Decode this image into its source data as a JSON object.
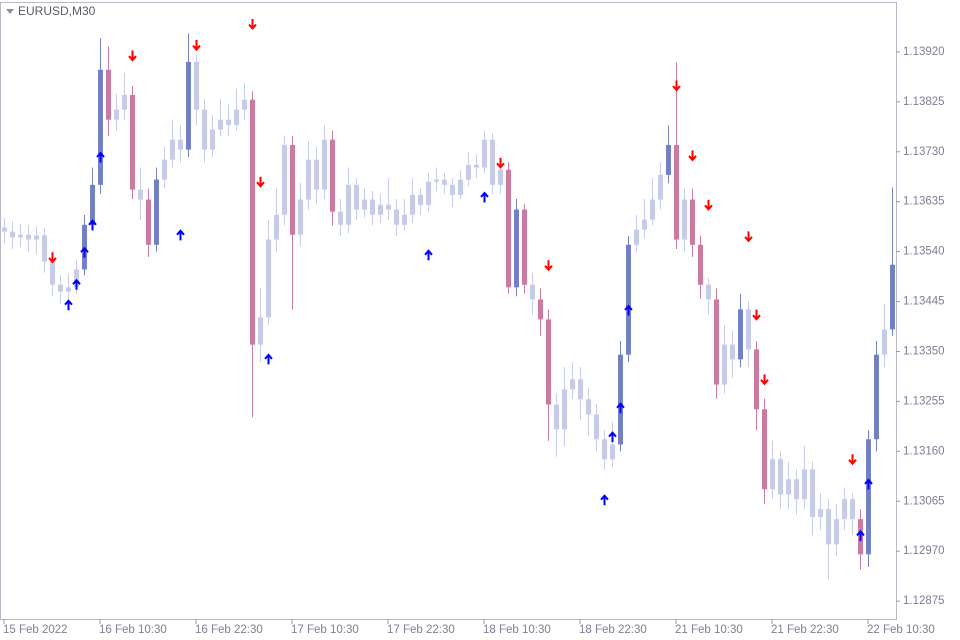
{
  "chart_data": {
    "type": "candlestick",
    "title": "EURUSD,M30",
    "categories": [
      "15 Feb 2022",
      null,
      null,
      null,
      null,
      null,
      null,
      null,
      null,
      null,
      null,
      null,
      "16 Feb 10:30",
      null,
      null,
      null,
      null,
      null,
      null,
      null,
      null,
      null,
      null,
      null,
      "16 Feb 22:30",
      null,
      null,
      null,
      null,
      null,
      null,
      null,
      null,
      null,
      null,
      null,
      "17 Feb 10:30",
      null,
      null,
      null,
      null,
      null,
      null,
      null,
      null,
      null,
      null,
      null,
      "17 Feb 22:30",
      null,
      null,
      null,
      null,
      null,
      null,
      null,
      null,
      null,
      null,
      null,
      "18 Feb 10:30",
      null,
      null,
      null,
      null,
      null,
      null,
      null,
      null,
      null,
      null,
      null,
      "18 Feb 22:30",
      null,
      null,
      null,
      null,
      null,
      null,
      null,
      null,
      null,
      null,
      null,
      "21 Feb 10:30",
      null,
      null,
      null,
      null,
      null,
      null,
      null,
      null,
      null,
      null,
      null,
      "21 Feb 22:30",
      null,
      null,
      null,
      null,
      null,
      null,
      null,
      null,
      null,
      null,
      null,
      "22 Feb 10:30",
      null,
      null,
      null
    ],
    "open": [
      1.13586,
      1.13578,
      1.13567,
      1.13572,
      1.13563,
      1.13571,
      1.13521,
      1.13477,
      1.13464,
      1.13472,
      1.13506,
      1.13591,
      1.13667,
      1.13886,
      1.13791,
      1.1381,
      1.13838,
      1.13658,
      1.13639,
      1.13553,
      1.13677,
      1.13715,
      1.13753,
      1.13734,
      1.13901,
      1.1381,
      1.13734,
      1.13772,
      1.13791,
      1.13781,
      1.1381,
      1.13829,
      1.13363,
      1.13415,
      1.13563,
      1.1361,
      1.13743,
      1.13572,
      1.13639,
      1.13715,
      1.13658,
      1.13753,
      1.13616,
      1.13591,
      1.13667,
      1.1362,
      1.13639,
      1.1361,
      1.13629,
      1.1362,
      1.13591,
      1.1361,
      1.13648,
      1.13629,
      1.13673,
      1.13677,
      1.13667,
      1.13648,
      1.13677,
      1.13705,
      1.137,
      1.13753,
      1.13667,
      1.13696,
      1.13472,
      1.1362,
      1.13477,
      1.13449,
      1.13411,
      1.13249,
      1.13202,
      1.13278,
      1.13297,
      1.13259,
      1.1323,
      1.13183,
      1.13145,
      1.13173,
      1.13344,
      1.13553,
      1.13582,
      1.13601,
      1.13639,
      1.13686,
      1.13743,
      1.13563,
      1.13639,
      1.13553,
      1.13477,
      1.13449,
      1.13287,
      1.13363,
      1.13335,
      1.1343,
      1.13354,
      1.1324,
      1.13088,
      1.13145,
      1.13078,
      1.13107,
      1.13069,
      1.13126,
      1.13035,
      1.1305,
      1.12983,
      1.13031,
      1.13069,
      1.13031,
      1.12964,
      1.13183,
      1.13344,
      1.13392
    ],
    "close": [
      1.13578,
      1.13567,
      1.13572,
      1.13563,
      1.13571,
      1.13521,
      1.13477,
      1.13464,
      1.13472,
      1.13506,
      1.13591,
      1.13667,
      1.13886,
      1.13791,
      1.1381,
      1.13838,
      1.13658,
      1.13639,
      1.13553,
      1.13677,
      1.13715,
      1.13753,
      1.13734,
      1.13901,
      1.1381,
      1.13734,
      1.13772,
      1.13791,
      1.13781,
      1.1381,
      1.13829,
      1.13363,
      1.13415,
      1.13563,
      1.1361,
      1.13743,
      1.13572,
      1.13639,
      1.13715,
      1.13658,
      1.13753,
      1.13616,
      1.13591,
      1.13667,
      1.1362,
      1.13639,
      1.1361,
      1.13629,
      1.1362,
      1.13591,
      1.1361,
      1.13648,
      1.13629,
      1.13673,
      1.13677,
      1.13667,
      1.13648,
      1.13677,
      1.13705,
      1.137,
      1.13753,
      1.13667,
      1.13696,
      1.13472,
      1.1362,
      1.13477,
      1.13449,
      1.13411,
      1.13249,
      1.13202,
      1.13278,
      1.13297,
      1.13259,
      1.1323,
      1.13183,
      1.13145,
      1.13173,
      1.13344,
      1.13553,
      1.13582,
      1.13601,
      1.13639,
      1.13686,
      1.13743,
      1.13563,
      1.13639,
      1.13553,
      1.13477,
      1.13449,
      1.13287,
      1.13363,
      1.13335,
      1.1343,
      1.13354,
      1.1324,
      1.13088,
      1.13145,
      1.13078,
      1.13107,
      1.13069,
      1.13126,
      1.13035,
      1.1305,
      1.12983,
      1.13031,
      1.13069,
      1.13031,
      1.12964,
      1.13183,
      1.13344,
      1.13392,
      1.13515
    ],
    "high": [
      1.13604,
      1.13597,
      1.13592,
      1.1359,
      1.13588,
      1.13585,
      1.1354,
      1.13495,
      1.13498,
      1.13525,
      1.1361,
      1.137,
      1.13946,
      1.1393,
      1.1384,
      1.1388,
      1.13855,
      1.137,
      1.1366,
      1.137,
      1.1374,
      1.1379,
      1.1378,
      1.13955,
      1.13915,
      1.1383,
      1.138,
      1.1383,
      1.1382,
      1.1385,
      1.1386,
      1.13845,
      1.1347,
      1.136,
      1.1366,
      1.1376,
      1.1376,
      1.1367,
      1.1375,
      1.1374,
      1.1378,
      1.1377,
      1.1364,
      1.137,
      1.1368,
      1.1366,
      1.13655,
      1.1365,
      1.1368,
      1.1364,
      1.1364,
      1.1368,
      1.1366,
      1.1369,
      1.137,
      1.1369,
      1.1368,
      1.13695,
      1.1373,
      1.13725,
      1.1377,
      1.13765,
      1.1371,
      1.1371,
      1.1364,
      1.1363,
      1.135,
      1.1347,
      1.1343,
      1.1327,
      1.1332,
      1.1333,
      1.1332,
      1.1328,
      1.1325,
      1.132,
      1.13215,
      1.1337,
      1.1357,
      1.1361,
      1.1364,
      1.1368,
      1.1371,
      1.1378,
      1.139,
      1.1366,
      1.1366,
      1.1357,
      1.1349,
      1.1347,
      1.134,
      1.1339,
      1.1346,
      1.13445,
      1.1337,
      1.1326,
      1.1318,
      1.1316,
      1.1314,
      1.13125,
      1.1317,
      1.1314,
      1.1308,
      1.1307,
      1.1306,
      1.1309,
      1.1308,
      1.1305,
      1.132,
      1.1337,
      1.1344,
      1.13662
    ],
    "low": [
      1.13555,
      1.13545,
      1.13548,
      1.1354,
      1.13535,
      1.135,
      1.13455,
      1.1344,
      1.1345,
      1.1346,
      1.13495,
      1.1358,
      1.1365,
      1.1376,
      1.1377,
      1.1379,
      1.1364,
      1.136,
      1.1353,
      1.1354,
      1.1366,
      1.137,
      1.1371,
      1.1372,
      1.1378,
      1.1371,
      1.1372,
      1.1376,
      1.1376,
      1.1377,
      1.1379,
      1.13225,
      1.1333,
      1.134,
      1.1354,
      1.1359,
      1.1343,
      1.1355,
      1.1362,
      1.1363,
      1.1364,
      1.1359,
      1.1357,
      1.13575,
      1.136,
      1.13605,
      1.1359,
      1.13595,
      1.136,
      1.1357,
      1.1358,
      1.13595,
      1.1361,
      1.13615,
      1.13655,
      1.1365,
      1.13625,
      1.1364,
      1.13665,
      1.1368,
      1.1369,
      1.1365,
      1.1365,
      1.1346,
      1.13455,
      1.1346,
      1.1342,
      1.1338,
      1.1318,
      1.1315,
      1.1317,
      1.1326,
      1.1322,
      1.1319,
      1.1316,
      1.13125,
      1.1313,
      1.1316,
      1.1333,
      1.1354,
      1.13565,
      1.1359,
      1.1362,
      1.1367,
      1.13545,
      1.1354,
      1.1353,
      1.1345,
      1.1342,
      1.1326,
      1.1327,
      1.133,
      1.1332,
      1.1332,
      1.132,
      1.1306,
      1.1307,
      1.1305,
      1.1305,
      1.1304,
      1.1305,
      1.13,
      1.1301,
      1.12917,
      1.1296,
      1.1301,
      1.13,
      1.12935,
      1.1294,
      1.1316,
      1.1332,
      1.1338
    ],
    "colors": [
      "#c5cbe8",
      "#c5cbe8",
      "#c5cbe8",
      "#c5cbe8",
      "#c5cbe8",
      "#c5cbe8",
      "#c5cbe8",
      "#c5cbe8",
      "#c5cbe8",
      "#c5cbe8",
      "#7480c4",
      "#7480c4",
      "#7480c4",
      "#cc7aa0",
      "#c5cbe8",
      "#c5cbe8",
      "#cc7aa0",
      "#c5cbe8",
      "#cc7aa0",
      "#7480c4",
      "#c5cbe8",
      "#c5cbe8",
      "#c5cbe8",
      "#7480c4",
      "#c5cbe8",
      "#c5cbe8",
      "#c5cbe8",
      "#c5cbe8",
      "#c5cbe8",
      "#c5cbe8",
      "#c5cbe8",
      "#cc7aa0",
      "#c5cbe8",
      "#c5cbe8",
      "#c5cbe8",
      "#c5cbe8",
      "#cc7aa0",
      "#c5cbe8",
      "#c5cbe8",
      "#c5cbe8",
      "#c5cbe8",
      "#cc7aa0",
      "#c5cbe8",
      "#c5cbe8",
      "#c5cbe8",
      "#c5cbe8",
      "#c5cbe8",
      "#c5cbe8",
      "#c5cbe8",
      "#c5cbe8",
      "#c5cbe8",
      "#c5cbe8",
      "#c5cbe8",
      "#c5cbe8",
      "#c5cbe8",
      "#c5cbe8",
      "#c5cbe8",
      "#c5cbe8",
      "#c5cbe8",
      "#c5cbe8",
      "#c5cbe8",
      "#c5cbe8",
      "#c5cbe8",
      "#cc7aa0",
      "#7480c4",
      "#cc7aa0",
      "#c5cbe8",
      "#cc7aa0",
      "#cc7aa0",
      "#c5cbe8",
      "#c5cbe8",
      "#c5cbe8",
      "#c5cbe8",
      "#c5cbe8",
      "#c5cbe8",
      "#c5cbe8",
      "#c5cbe8",
      "#7480c4",
      "#7480c4",
      "#c5cbe8",
      "#c5cbe8",
      "#c5cbe8",
      "#c5cbe8",
      "#7480c4",
      "#cc7aa0",
      "#c5cbe8",
      "#cc7aa0",
      "#cc7aa0",
      "#c5cbe8",
      "#cc7aa0",
      "#c5cbe8",
      "#c5cbe8",
      "#7480c4",
      "#c5cbe8",
      "#cc7aa0",
      "#cc7aa0",
      "#c5cbe8",
      "#c5cbe8",
      "#c5cbe8",
      "#c5cbe8",
      "#c5cbe8",
      "#c5cbe8",
      "#c5cbe8",
      "#c5cbe8",
      "#c5cbe8",
      "#c5cbe8",
      "#c5cbe8",
      "#cc7aa0",
      "#7480c4",
      "#7480c4",
      "#c5cbe8",
      "#7480c4"
    ],
    "buy_arrows": {
      "color": "#0000ff",
      "values": [
        null,
        null,
        null,
        null,
        null,
        null,
        null,
        null,
        1.13438,
        1.13477,
        1.13538,
        1.1359,
        1.13719,
        null,
        null,
        null,
        null,
        null,
        null,
        null,
        null,
        null,
        1.13571,
        null,
        null,
        null,
        null,
        null,
        null,
        null,
        null,
        null,
        null,
        1.13335,
        null,
        null,
        null,
        null,
        null,
        null,
        null,
        null,
        null,
        null,
        null,
        null,
        null,
        null,
        null,
        null,
        null,
        null,
        null,
        1.13533,
        null,
        null,
        null,
        null,
        null,
        null,
        1.13643,
        null,
        null,
        null,
        null,
        null,
        null,
        null,
        null,
        null,
        null,
        null,
        null,
        null,
        null,
        1.13067,
        1.13187,
        1.13242,
        1.13428,
        null,
        null,
        null,
        null,
        null,
        null,
        null,
        null,
        null,
        null,
        null,
        null,
        null,
        null,
        null,
        null,
        null,
        null,
        null,
        null,
        null,
        null,
        null,
        null,
        null,
        null,
        null,
        null,
        1.12999,
        1.13097,
        null,
        null,
        null
      ]
    },
    "sell_arrows": {
      "color": "#ff0000",
      "values": [
        null,
        null,
        null,
        null,
        null,
        null,
        1.13529,
        null,
        null,
        null,
        null,
        null,
        null,
        null,
        null,
        null,
        1.13913,
        null,
        null,
        null,
        null,
        null,
        null,
        null,
        1.13933,
        null,
        null,
        null,
        null,
        null,
        null,
        1.13973,
        1.13673,
        null,
        null,
        null,
        null,
        null,
        null,
        null,
        null,
        null,
        null,
        null,
        null,
        null,
        null,
        null,
        null,
        null,
        null,
        null,
        null,
        null,
        null,
        null,
        null,
        null,
        null,
        null,
        null,
        null,
        1.13709,
        null,
        null,
        null,
        null,
        null,
        1.13514,
        null,
        null,
        null,
        null,
        null,
        null,
        null,
        null,
        null,
        null,
        null,
        null,
        null,
        null,
        null,
        1.13856,
        null,
        1.13723,
        null,
        1.13629,
        null,
        null,
        null,
        null,
        1.13569,
        1.1342,
        1.13297,
        null,
        null,
        null,
        null,
        null,
        null,
        null,
        null,
        null,
        null,
        1.13145,
        null,
        null,
        null,
        null,
        null
      ]
    },
    "ylim": [
      1.12841,
      1.14013
    ],
    "yticks": [
      {
        "value": 1.1392,
        "label": "1.13920"
      },
      {
        "value": 1.13825,
        "label": "1.13825"
      },
      {
        "value": 1.1373,
        "label": "1.13730"
      },
      {
        "value": 1.13635,
        "label": "1.13635"
      },
      {
        "value": 1.1354,
        "label": "1.13540"
      },
      {
        "value": 1.13445,
        "label": "1.13445"
      },
      {
        "value": 1.1335,
        "label": "1.13350"
      },
      {
        "value": 1.13255,
        "label": "1.13255"
      },
      {
        "value": 1.1316,
        "label": "1.13160"
      },
      {
        "value": 1.13065,
        "label": "1.13065"
      },
      {
        "value": 1.1297,
        "label": "1.12970"
      },
      {
        "value": 1.12875,
        "label": "1.12875"
      }
    ]
  }
}
